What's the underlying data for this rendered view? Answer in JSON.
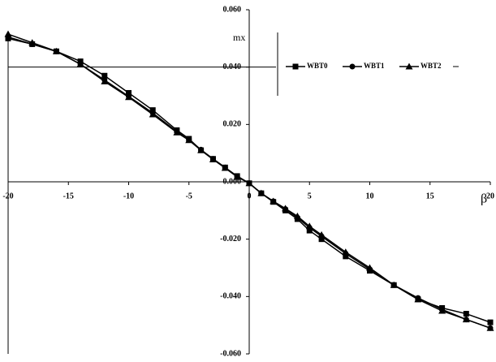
{
  "chart_data": {
    "type": "line",
    "y_label": "mx",
    "x_label": "β",
    "x": [
      -20,
      -18,
      -16,
      -14,
      -12,
      -10,
      -8,
      -6,
      -5,
      -4,
      -3,
      -2,
      -1,
      0,
      1,
      2,
      3,
      4,
      5,
      6,
      8,
      10,
      12,
      14,
      16,
      18,
      20
    ],
    "series": [
      {
        "name": "WBT0",
        "color": "#000000",
        "marker": "square",
        "values": [
          0.05,
          0.048,
          0.0455,
          0.042,
          0.037,
          0.031,
          0.025,
          0.018,
          0.015,
          0.011,
          0.008,
          0.005,
          0.002,
          -0.0005,
          -0.004,
          -0.007,
          -0.01,
          -0.013,
          -0.017,
          -0.02,
          -0.026,
          -0.031,
          -0.036,
          -0.041,
          -0.044,
          -0.046,
          -0.049
        ]
      },
      {
        "name": "WBT1",
        "color": "#000000",
        "marker": "circle",
        "values": [
          0.0505,
          0.048,
          0.0455,
          0.041,
          0.0355,
          0.0298,
          0.024,
          0.0175,
          0.0148,
          0.0112,
          0.008,
          0.005,
          0.0018,
          -0.0005,
          -0.004,
          -0.0068,
          -0.0095,
          -0.0125,
          -0.016,
          -0.019,
          -0.025,
          -0.0305,
          -0.036,
          -0.0405,
          -0.0445,
          -0.048,
          -0.051
        ]
      },
      {
        "name": "WBT2",
        "color": "#000000",
        "marker": "triangle",
        "values": [
          0.0515,
          0.0485,
          0.0455,
          0.041,
          0.035,
          0.0295,
          0.0235,
          0.0172,
          0.0145,
          0.011,
          0.0078,
          0.0048,
          0.0017,
          -0.0005,
          -0.004,
          -0.0068,
          -0.0093,
          -0.012,
          -0.0155,
          -0.0185,
          -0.0245,
          -0.03,
          -0.036,
          -0.041,
          -0.045,
          -0.048,
          -0.051
        ]
      }
    ],
    "xlim": [
      -20,
      20
    ],
    "xticks": [
      -20,
      -15,
      -10,
      -5,
      0,
      5,
      10,
      15,
      20
    ],
    "ylim": [
      -0.06,
      0.06
    ],
    "yticks": [
      {
        "value": -0.06,
        "label": "-0.060"
      },
      {
        "value": -0.04,
        "label": "-0.040"
      },
      {
        "value": -0.02,
        "label": "-0.020"
      },
      {
        "value": 0,
        "label": "0.000"
      },
      {
        "value": 0.02,
        "label": "0.020"
      },
      {
        "value": 0.04,
        "label": "0.040"
      },
      {
        "value": 0.06,
        "label": "0.060"
      }
    ]
  }
}
